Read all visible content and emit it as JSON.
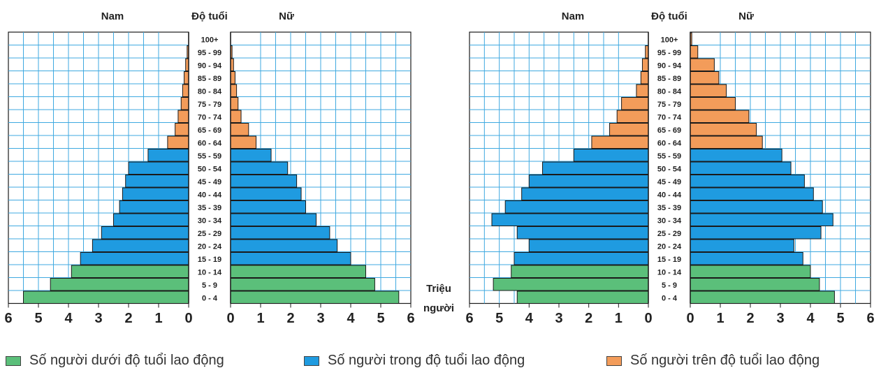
{
  "colors": {
    "under": "#5bbf7a",
    "working": "#1f9be0",
    "over": "#f39c5a",
    "grid": "#3fa9e0",
    "bar_border": "#1a1a1a"
  },
  "legend": {
    "under_label": "Số người dưới độ tuổi lao động",
    "working_label": "Số người trong độ tuổi lao động",
    "over_label": "Số người trên độ tuổi lao động"
  },
  "unit_label": [
    "Triệu",
    "người"
  ],
  "chart_data": [
    {
      "type": "population-pyramid",
      "header_left": "Nam",
      "header_center": "Độ tuổi",
      "header_right": "Nữ",
      "age_groups": [
        "100+",
        "95 - 99",
        "90 - 94",
        "85 - 89",
        "80 - 84",
        "75 - 79",
        "70 - 74",
        "65 - 69",
        "60 - 64",
        "55 - 59",
        "50 - 54",
        "45 - 49",
        "40 - 44",
        "35 - 39",
        "30 - 34",
        "25 - 29",
        "20 - 24",
        "15 - 19",
        "10 - 14",
        "5 - 9",
        "0 - 4"
      ],
      "category": [
        "over",
        "over",
        "over",
        "over",
        "over",
        "over",
        "over",
        "over",
        "over",
        "working",
        "working",
        "working",
        "working",
        "working",
        "working",
        "working",
        "working",
        "working",
        "under",
        "under",
        "under"
      ],
      "male": [
        0.0,
        0.05,
        0.1,
        0.15,
        0.2,
        0.25,
        0.35,
        0.45,
        0.7,
        1.35,
        2.0,
        2.1,
        2.2,
        2.3,
        2.5,
        2.9,
        3.2,
        3.6,
        3.9,
        4.6,
        5.5
      ],
      "female": [
        0.0,
        0.05,
        0.1,
        0.15,
        0.2,
        0.25,
        0.35,
        0.6,
        0.85,
        1.35,
        1.9,
        2.2,
        2.35,
        2.5,
        2.85,
        3.3,
        3.55,
        4.0,
        4.5,
        4.8,
        5.6
      ],
      "xticks": [
        6,
        5,
        4,
        3,
        2,
        1,
        0
      ],
      "xlim": [
        0,
        6
      ],
      "grid": true
    },
    {
      "type": "population-pyramid",
      "header_left": "Nam",
      "header_center": "Độ tuổi",
      "header_right": "Nữ",
      "age_groups": [
        "100+",
        "95 - 99",
        "90 - 94",
        "85 - 89",
        "80 - 84",
        "75 - 79",
        "70 - 74",
        "65 - 69",
        "60 - 64",
        "55 - 59",
        "50 - 54",
        "45 - 49",
        "40 - 44",
        "35 - 39",
        "30 - 34",
        "25 - 29",
        "20 - 24",
        "15 - 19",
        "10 - 14",
        "5 - 9",
        "0 - 4"
      ],
      "category": [
        "over",
        "over",
        "over",
        "over",
        "over",
        "over",
        "over",
        "over",
        "over",
        "working",
        "working",
        "working",
        "working",
        "working",
        "working",
        "working",
        "working",
        "working",
        "under",
        "under",
        "under"
      ],
      "male": [
        0.0,
        0.1,
        0.2,
        0.25,
        0.4,
        0.9,
        1.05,
        1.3,
        1.9,
        2.5,
        3.55,
        4.0,
        4.25,
        4.8,
        5.25,
        4.4,
        4.0,
        4.5,
        4.6,
        5.2,
        4.4
      ],
      "female": [
        0.05,
        0.25,
        0.8,
        0.95,
        1.2,
        1.5,
        1.95,
        2.2,
        2.4,
        3.05,
        3.35,
        3.8,
        4.1,
        4.4,
        4.75,
        4.35,
        3.45,
        3.75,
        4.0,
        4.3,
        4.8
      ],
      "xticks": [
        6,
        5,
        4,
        3,
        2,
        1,
        0
      ],
      "xlim": [
        0,
        6
      ],
      "grid": true
    }
  ]
}
